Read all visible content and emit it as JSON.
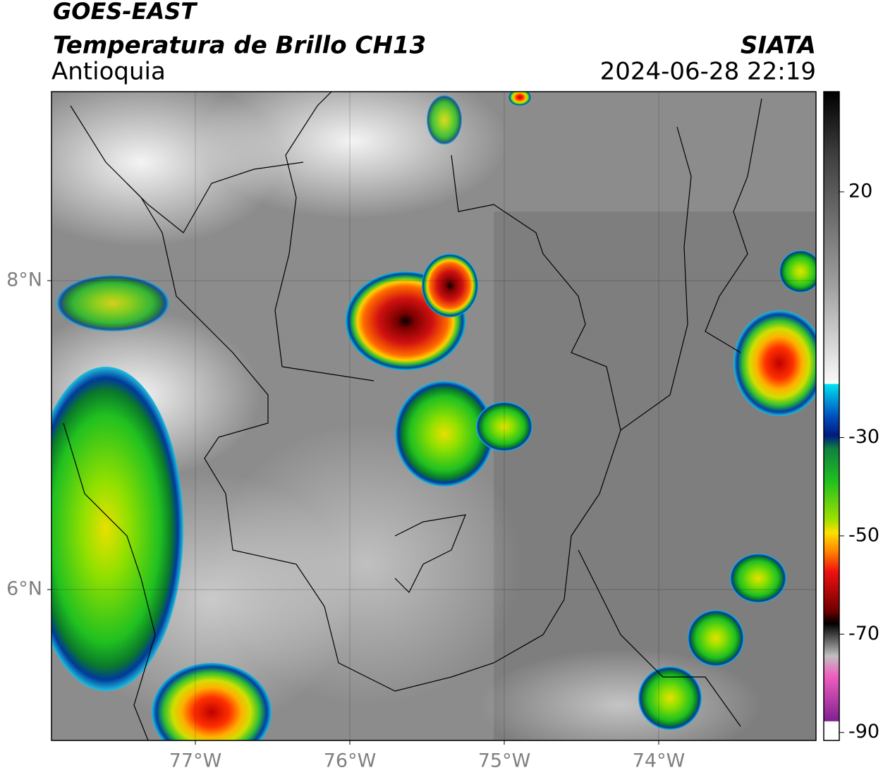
{
  "header": {
    "title": "GOES-EAST",
    "subtitle": "Temperatura de Brillo CH13",
    "region": "Antioquia",
    "source": "SIATA",
    "datetime": "2024-06-28 22:19"
  },
  "map": {
    "xticks": [
      {
        "value": -77,
        "label": "77°W"
      },
      {
        "value": -76,
        "label": "76°W"
      },
      {
        "value": -75,
        "label": "75°W"
      },
      {
        "value": -74,
        "label": "74°W"
      }
    ],
    "yticks": [
      {
        "value": 8,
        "label": "8°N"
      },
      {
        "value": 6,
        "label": "6°N"
      }
    ]
  },
  "colorbar": {
    "ticks": [
      20,
      -30,
      -50,
      -70,
      -90
    ]
  }
}
